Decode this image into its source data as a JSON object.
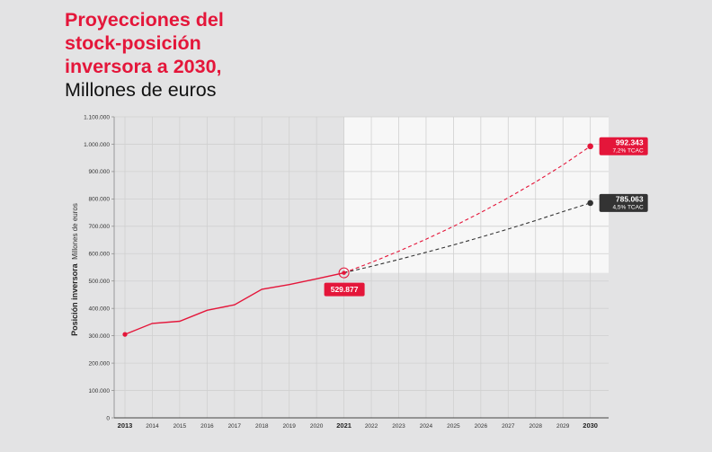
{
  "header": {
    "title_lines": [
      "Proyecciones del",
      "stock-posición",
      "inversora a 2030,"
    ],
    "subtitle": "Millones de euros"
  },
  "colors": {
    "accent": "#e4163a",
    "dark": "#333333",
    "background": "#e3e3e4",
    "projection_panel": "#f7f7f7"
  },
  "chart_data": {
    "type": "line",
    "title": "Proyecciones del stock-posición inversora a 2030, Millones de euros",
    "ylabel_bold": "Posición inversora",
    "ylabel_rest": "Millones de euros",
    "xlabel": "",
    "ylim": [
      0,
      1100000
    ],
    "yticks": [
      0,
      100000,
      200000,
      300000,
      400000,
      500000,
      600000,
      700000,
      800000,
      900000,
      1000000,
      1100000
    ],
    "ytick_labels": [
      "0",
      "100.000",
      "200.000",
      "300.000",
      "400.000",
      "500.000",
      "600.000",
      "700.000",
      "800.000",
      "900.000",
      "1.000.000",
      "1.100.000"
    ],
    "x": [
      2013,
      2014,
      2015,
      2016,
      2017,
      2018,
      2019,
      2020,
      2021,
      2022,
      2023,
      2024,
      2025,
      2026,
      2027,
      2028,
      2029,
      2030
    ],
    "x_labels": [
      "2013",
      "2014",
      "2015",
      "2016",
      "2017",
      "2018",
      "2019",
      "2020",
      "2021",
      "2022",
      "2023",
      "2024",
      "2025",
      "2026",
      "2027",
      "2028",
      "2029",
      "2030"
    ],
    "x_bold_labels": [
      "2013",
      "2021",
      "2030"
    ],
    "grid": true,
    "series": [
      {
        "style": "solid",
        "color": "#e4163a",
        "x": [
          2013,
          2014,
          2015,
          2016,
          2017,
          2018,
          2019,
          2020,
          2021
        ],
        "values": [
          305000,
          345000,
          353000,
          393000,
          413000,
          470000,
          487000,
          508000,
          529877
        ]
      },
      {
        "style": "dashed",
        "color": "#e4163a",
        "x": [
          2021,
          2022,
          2023,
          2024,
          2025,
          2026,
          2027,
          2028,
          2029,
          2030
        ],
        "values": [
          529877,
          568028,
          608926,
          652769,
          699768,
          750151,
          804162,
          862062,
          924130,
          992343
        ]
      },
      {
        "style": "dashed",
        "color": "#333333",
        "x": [
          2021,
          2022,
          2023,
          2024,
          2025,
          2026,
          2027,
          2028,
          2029,
          2030
        ],
        "values": [
          529877,
          553721,
          578639,
          604678,
          631888,
          660323,
          690037,
          721089,
          753538,
          785063
        ]
      }
    ],
    "annotations": [
      {
        "x": 2021,
        "y": 529877,
        "label": "529.877",
        "color": "#e4163a"
      },
      {
        "x": 2030,
        "y": 992343,
        "label": "992.343",
        "sublabel": "7,2% TCAC",
        "color": "#e4163a"
      },
      {
        "x": 2030,
        "y": 785063,
        "label": "785.063",
        "sublabel": "4,5% TCAC",
        "color": "#333333"
      }
    ]
  }
}
